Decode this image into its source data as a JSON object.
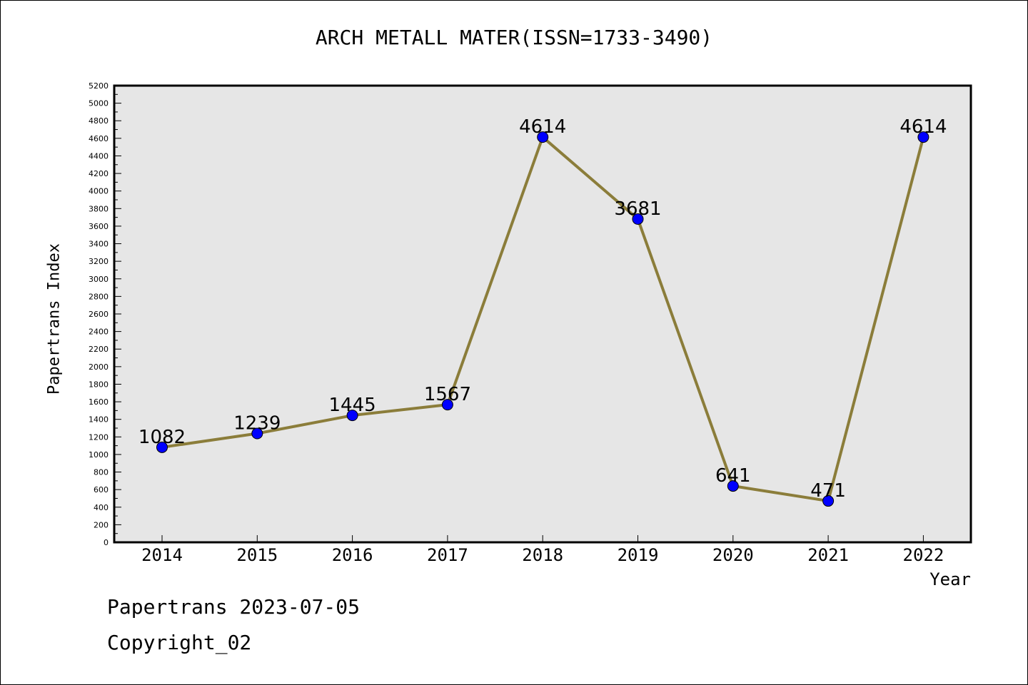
{
  "chart_data": {
    "type": "line",
    "title": "ARCH METALL MATER(ISSN=1733-3490)",
    "xlabel": "Year",
    "ylabel": "Papertrans Index",
    "categories": [
      "2014",
      "2015",
      "2016",
      "2017",
      "2018",
      "2019",
      "2020",
      "2021",
      "2022"
    ],
    "values": [
      1082,
      1239,
      1445,
      1567,
      4614,
      3681,
      641,
      471,
      4614
    ],
    "data_labels": [
      "1082",
      "1239",
      "1445",
      "1567",
      "4614",
      "3681",
      "641",
      "471",
      "4614"
    ],
    "ylim": [
      0,
      5200
    ],
    "yticks": [
      "0",
      "200",
      "400",
      "600",
      "800",
      "1000",
      "1200",
      "1400",
      "1600",
      "1800",
      "2000",
      "2200",
      "2400",
      "2600",
      "2800",
      "3000",
      "3200",
      "3400",
      "3600",
      "3800",
      "4000",
      "4200",
      "4400",
      "4600",
      "4800",
      "5000",
      "5200"
    ],
    "grid": false,
    "colors": {
      "line": "#8b7d3a",
      "marker": "#0000ff",
      "plot_bg": "#e6e6e6"
    }
  },
  "footer": {
    "line1": "Papertrans 2023-07-05",
    "line2": "Copyright_02"
  }
}
